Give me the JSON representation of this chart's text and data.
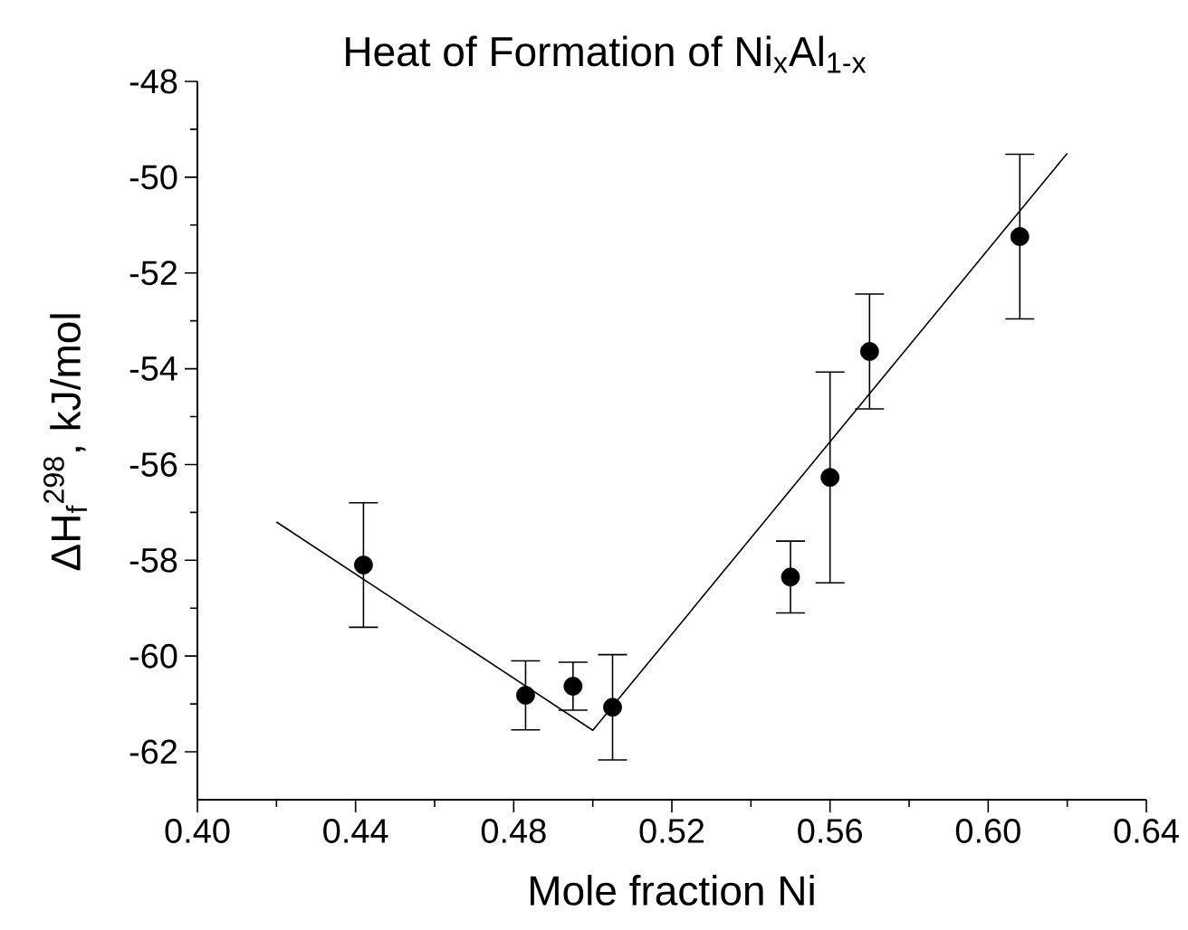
{
  "chart_data": {
    "type": "scatter",
    "title": "Heat of Formation of Ni$_{x}$Al$_{1-x}$",
    "xlabel": "Mole fraction Ni",
    "ylabel": "ΔH$_{f}$$^{298}$, kJ/mol",
    "series": [
      {
        "type": "line",
        "x": [
          0.42,
          0.5,
          0.62
        ],
        "values": [
          -57.2,
          -61.55,
          -49.5
        ],
        "color": "#000000",
        "marker": "none"
      },
      {
        "x": [
          0.442,
          0.483,
          0.495,
          0.505,
          0.55,
          0.56,
          0.57,
          0.608
        ],
        "values": [
          -58.1,
          -60.82,
          -60.63,
          -61.07,
          -58.35,
          -56.27,
          -53.64,
          -51.24
        ],
        "errors": [
          1.3,
          0.72,
          0.5,
          1.1,
          0.75,
          2.2,
          1.2,
          1.72
        ],
        "color": "#000000",
        "marker": "circle"
      }
    ],
    "xlim": [
      0.4,
      0.64
    ],
    "ylim": [
      -63,
      -48
    ],
    "xticks": [
      {
        "value": 0.4,
        "label": "0.40"
      },
      {
        "value": 0.44,
        "label": "0.44"
      },
      {
        "value": 0.48,
        "label": "0.48"
      },
      {
        "value": 0.52,
        "label": "0.52"
      },
      {
        "value": 0.56,
        "label": "0.56"
      },
      {
        "value": 0.6,
        "label": "0.60"
      },
      {
        "value": 0.64,
        "label": "0.64"
      }
    ],
    "yticks": [
      -62,
      -60,
      -58,
      -56,
      -54,
      -52,
      -50,
      -48
    ],
    "grid": false
  }
}
